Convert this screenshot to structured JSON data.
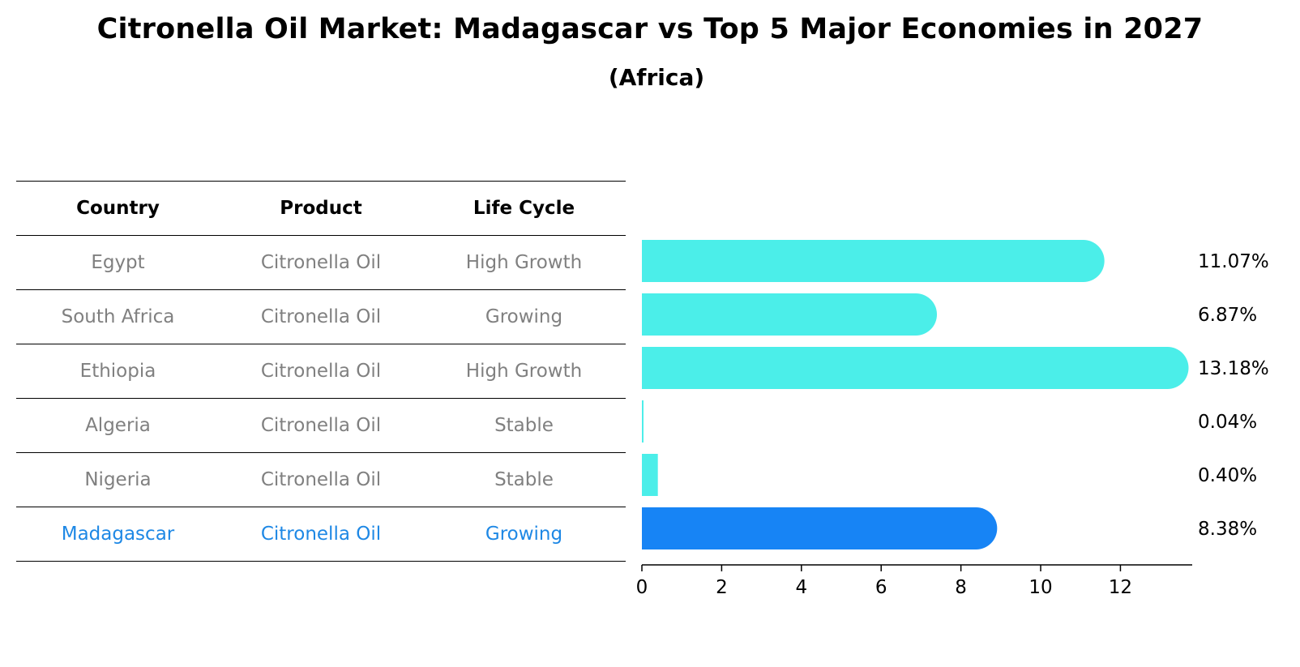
{
  "chart_data": {
    "type": "bar",
    "orientation": "horizontal",
    "title": "Citronella Oil Market: Madagascar vs Top 5 Major Economies in 2027",
    "subtitle": "(Africa)",
    "table_headers": [
      "Country",
      "Product",
      "Life Cycle"
    ],
    "rows": [
      {
        "country": "Egypt",
        "product": "Citronella Oil",
        "life_cycle": "High Growth",
        "value": 11.07,
        "label": "11.07%",
        "highlight": false
      },
      {
        "country": "South Africa",
        "product": "Citronella Oil",
        "life_cycle": "Growing",
        "value": 6.87,
        "label": "6.87%",
        "highlight": false
      },
      {
        "country": "Ethiopia",
        "product": "Citronella Oil",
        "life_cycle": "High Growth",
        "value": 13.18,
        "label": "13.18%",
        "highlight": false
      },
      {
        "country": "Algeria",
        "product": "Citronella Oil",
        "life_cycle": "Stable",
        "value": 0.04,
        "label": "0.04%",
        "highlight": false
      },
      {
        "country": "Nigeria",
        "product": "Citronella Oil",
        "life_cycle": "Stable",
        "value": 0.4,
        "label": "0.40%",
        "highlight": false
      },
      {
        "country": "Madagascar",
        "product": "Citronella Oil",
        "life_cycle": "Growing",
        "value": 8.38,
        "label": "8.38%",
        "highlight": true
      }
    ],
    "xlim": [
      0,
      13.8
    ],
    "xticks": [
      0,
      2,
      4,
      6,
      8,
      10,
      12
    ],
    "xlabel": "",
    "ylabel": "",
    "grid": false,
    "colors": {
      "bar": "#4beee9",
      "highlight_bar": "#1784f5",
      "highlight_text": "#1e88e5",
      "muted_text": "#808080"
    }
  }
}
